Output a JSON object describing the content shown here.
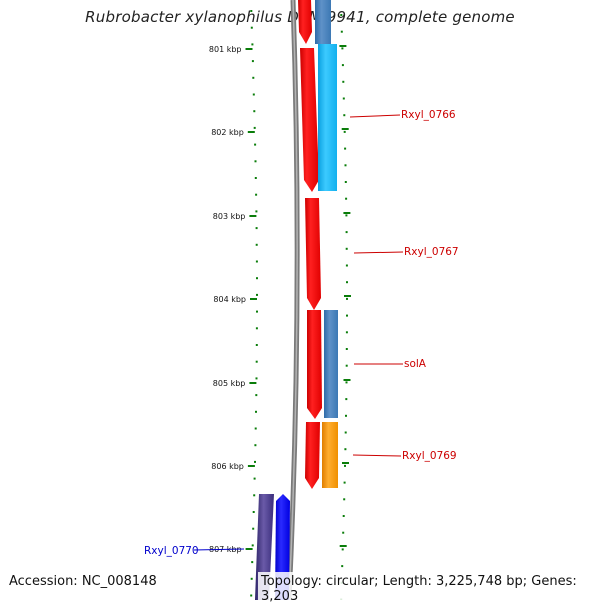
{
  "title": "Rubrobacter xylanophilus DSM 9941, complete genome",
  "accession": "Accession: NC_008148",
  "topology": "Topology: circular; Length: 3,225,748 bp; Genes: 3,203",
  "ruler": {
    "tick_labels": [
      "801 kbp",
      "802 kbp",
      "803 kbp",
      "804 kbp",
      "805 kbp",
      "806 kbp",
      "807 kbp"
    ],
    "tick_color": "#0a7d0a"
  },
  "genes": [
    {
      "label": "Rxyl_0766",
      "label_color": "#cc0000",
      "strand": "forward"
    },
    {
      "label": "Rxyl_0767",
      "label_color": "#cc0000",
      "strand": "forward"
    },
    {
      "label": "solA",
      "label_color": "#cc0000",
      "strand": "forward"
    },
    {
      "label": "Rxyl_0769",
      "label_color": "#cc0000",
      "strand": "forward"
    },
    {
      "label": "Rxyl_0770",
      "label_color": "#0000cc",
      "strand": "reverse"
    }
  ],
  "colors": {
    "cds_forward": "#ff0000",
    "cds_reverse": "#0000ff",
    "backbone": "#808080",
    "cog_light_blue": "#1ab8f0",
    "cog_steel_blue": "#4a80b8",
    "cog_orange": "#ff9a00",
    "cog_purple": "#4a3a8a"
  }
}
